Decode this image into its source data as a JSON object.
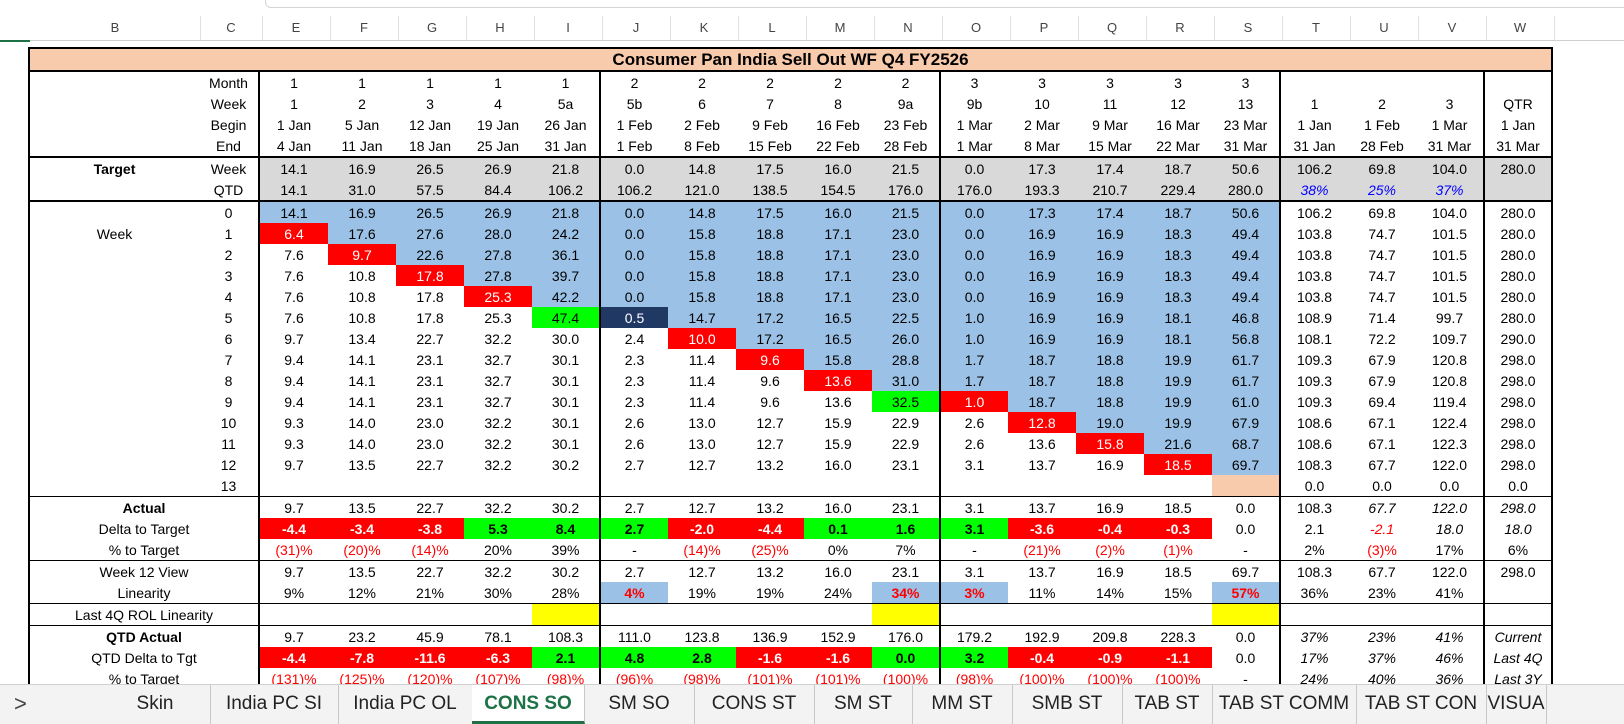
{
  "columns": [
    "B",
    "C",
    "E",
    "F",
    "G",
    "H",
    "I",
    "J",
    "K",
    "L",
    "M",
    "N",
    "O",
    "P",
    "Q",
    "R",
    "S",
    "T",
    "U",
    "V",
    "W"
  ],
  "title": "Consumer Pan India Sell Out WF Q4 FY2526",
  "header": {
    "labels": [
      "Month",
      "Week",
      "Begin",
      "End"
    ],
    "month": [
      "1",
      "1",
      "1",
      "1",
      "1",
      "2",
      "2",
      "2",
      "2",
      "2",
      "3",
      "3",
      "3",
      "3",
      "3"
    ],
    "week": [
      "1",
      "2",
      "3",
      "4",
      "5a",
      "5b",
      "6",
      "7",
      "8",
      "9a",
      "9b",
      "10",
      "11",
      "12",
      "13"
    ],
    "begin": [
      "1 Jan",
      "5 Jan",
      "12 Jan",
      "19 Jan",
      "26 Jan",
      "1 Feb",
      "2 Feb",
      "9 Feb",
      "16 Feb",
      "23 Feb",
      "1 Mar",
      "2 Mar",
      "9 Mar",
      "16 Mar",
      "23 Mar",
      "1 Jan",
      "1 Feb",
      "1 Mar",
      "1 Jan"
    ],
    "end": [
      "4 Jan",
      "11 Jan",
      "18 Jan",
      "25 Jan",
      "31 Jan",
      "1 Feb",
      "8 Feb",
      "15 Feb",
      "22 Feb",
      "28 Feb",
      "1 Mar",
      "8 Mar",
      "15 Mar",
      "22 Mar",
      "31 Mar",
      "31 Jan",
      "28 Feb",
      "31 Mar",
      "31 Mar"
    ],
    "summary_titles": [
      "1",
      "2",
      "3",
      "QTR"
    ]
  },
  "target": {
    "label": "Target",
    "week_label": "Week",
    "qtd_label": "QTD",
    "week": [
      "14.1",
      "16.9",
      "26.5",
      "26.9",
      "21.8",
      "0.0",
      "14.8",
      "17.5",
      "16.0",
      "21.5",
      "0.0",
      "17.3",
      "17.4",
      "18.7",
      "50.6",
      "106.2",
      "69.8",
      "104.0",
      "280.0"
    ],
    "qtd": [
      "14.1",
      "31.0",
      "57.5",
      "84.4",
      "106.2",
      "106.2",
      "121.0",
      "138.5",
      "154.5",
      "176.0",
      "176.0",
      "193.3",
      "210.7",
      "229.4",
      "280.0",
      "38%",
      "25%",
      "37%",
      ""
    ]
  },
  "week_block_label": "Week",
  "weeks": [
    {
      "n": "0",
      "v": [
        "14.1",
        "16.9",
        "26.5",
        "26.9",
        "21.8",
        "0.0",
        "14.8",
        "17.5",
        "16.0",
        "21.5",
        "0.0",
        "17.3",
        "17.4",
        "18.7",
        "50.6",
        "106.2",
        "69.8",
        "104.0",
        "280.0"
      ]
    },
    {
      "n": "1",
      "v": [
        "6.4",
        "17.6",
        "27.6",
        "28.0",
        "24.2",
        "0.0",
        "15.8",
        "18.8",
        "17.1",
        "23.0",
        "0.0",
        "16.9",
        "16.9",
        "18.3",
        "49.4",
        "103.8",
        "74.7",
        "101.5",
        "280.0"
      ]
    },
    {
      "n": "2",
      "v": [
        "7.6",
        "9.7",
        "22.6",
        "27.8",
        "36.1",
        "0.0",
        "15.8",
        "18.8",
        "17.1",
        "23.0",
        "0.0",
        "16.9",
        "16.9",
        "18.3",
        "49.4",
        "103.8",
        "74.7",
        "101.5",
        "280.0"
      ]
    },
    {
      "n": "3",
      "v": [
        "7.6",
        "10.8",
        "17.8",
        "27.8",
        "39.7",
        "0.0",
        "15.8",
        "18.8",
        "17.1",
        "23.0",
        "0.0",
        "16.9",
        "16.9",
        "18.3",
        "49.4",
        "103.8",
        "74.7",
        "101.5",
        "280.0"
      ]
    },
    {
      "n": "4",
      "v": [
        "7.6",
        "10.8",
        "17.8",
        "25.3",
        "42.2",
        "0.0",
        "15.8",
        "18.8",
        "17.1",
        "23.0",
        "0.0",
        "16.9",
        "16.9",
        "18.3",
        "49.4",
        "103.8",
        "74.7",
        "101.5",
        "280.0"
      ]
    },
    {
      "n": "5",
      "v": [
        "7.6",
        "10.8",
        "17.8",
        "25.3",
        "47.4",
        "0.5",
        "14.7",
        "17.2",
        "16.5",
        "22.5",
        "1.0",
        "16.9",
        "16.9",
        "18.1",
        "46.8",
        "108.9",
        "71.4",
        "99.7",
        "280.0"
      ]
    },
    {
      "n": "6",
      "v": [
        "9.7",
        "13.4",
        "22.7",
        "32.2",
        "30.0",
        "2.4",
        "10.0",
        "17.2",
        "16.5",
        "26.0",
        "1.0",
        "16.9",
        "16.9",
        "18.1",
        "56.8",
        "108.1",
        "72.2",
        "109.7",
        "290.0"
      ]
    },
    {
      "n": "7",
      "v": [
        "9.4",
        "14.1",
        "23.1",
        "32.7",
        "30.1",
        "2.3",
        "11.4",
        "9.6",
        "15.8",
        "28.8",
        "1.7",
        "18.7",
        "18.8",
        "19.9",
        "61.7",
        "109.3",
        "67.9",
        "120.8",
        "298.0"
      ]
    },
    {
      "n": "8",
      "v": [
        "9.4",
        "14.1",
        "23.1",
        "32.7",
        "30.1",
        "2.3",
        "11.4",
        "9.6",
        "13.6",
        "31.0",
        "1.7",
        "18.7",
        "18.8",
        "19.9",
        "61.7",
        "109.3",
        "67.9",
        "120.8",
        "298.0"
      ]
    },
    {
      "n": "9",
      "v": [
        "9.4",
        "14.1",
        "23.1",
        "32.7",
        "30.1",
        "2.3",
        "11.4",
        "9.6",
        "13.6",
        "32.5",
        "1.0",
        "18.7",
        "18.8",
        "19.9",
        "61.0",
        "109.3",
        "69.4",
        "119.4",
        "298.0"
      ]
    },
    {
      "n": "10",
      "v": [
        "9.3",
        "14.0",
        "23.0",
        "32.2",
        "30.1",
        "2.6",
        "13.0",
        "12.7",
        "15.9",
        "22.9",
        "2.6",
        "12.8",
        "19.0",
        "19.9",
        "67.9",
        "108.6",
        "67.1",
        "122.4",
        "298.0"
      ]
    },
    {
      "n": "11",
      "v": [
        "9.3",
        "14.0",
        "23.0",
        "32.2",
        "30.1",
        "2.6",
        "13.0",
        "12.7",
        "15.9",
        "22.9",
        "2.6",
        "13.6",
        "15.8",
        "21.6",
        "68.7",
        "108.6",
        "67.1",
        "122.3",
        "298.0"
      ]
    },
    {
      "n": "12",
      "v": [
        "9.7",
        "13.5",
        "22.7",
        "32.2",
        "30.2",
        "2.7",
        "12.7",
        "13.2",
        "16.0",
        "23.1",
        "3.1",
        "13.7",
        "16.9",
        "18.5",
        "69.7",
        "108.3",
        "67.7",
        "122.0",
        "298.0"
      ]
    },
    {
      "n": "13",
      "v": [
        "",
        "",
        "",
        "",
        "",
        "",
        "",
        "",
        "",
        "",
        "",
        "",
        "",
        "",
        "",
        "0.0",
        "0.0",
        "0.0",
        "0.0"
      ]
    }
  ],
  "actual": {
    "label": "Actual",
    "v": [
      "9.7",
      "13.5",
      "22.7",
      "32.2",
      "30.2",
      "2.7",
      "12.7",
      "13.2",
      "16.0",
      "23.1",
      "3.1",
      "13.7",
      "16.9",
      "18.5",
      "0.0",
      "108.3",
      "67.7",
      "122.0",
      "298.0"
    ]
  },
  "delta": {
    "label": "Delta to Target",
    "v": [
      "-4.4",
      "-3.4",
      "-3.8",
      "5.3",
      "8.4",
      "2.7",
      "-2.0",
      "-4.4",
      "0.1",
      "1.6",
      "3.1",
      "-3.6",
      "-0.4",
      "-0.3",
      "0.0",
      "2.1",
      "-2.1",
      "18.0",
      "18.0"
    ]
  },
  "pct_target": {
    "label": "% to Target",
    "v": [
      "(31)%",
      "(20)%",
      "(14)%",
      "20%",
      "39%",
      "-",
      "(14)%",
      "(25)%",
      "0%",
      "7%",
      "-",
      "(21)%",
      "(2)%",
      "(1)%",
      "-",
      "2%",
      "(3)%",
      "17%",
      "6%"
    ]
  },
  "week12": {
    "label": "Week 12 View",
    "v": [
      "9.7",
      "13.5",
      "22.7",
      "32.2",
      "30.2",
      "2.7",
      "12.7",
      "13.2",
      "16.0",
      "23.1",
      "3.1",
      "13.7",
      "16.9",
      "18.5",
      "69.7",
      "108.3",
      "67.7",
      "122.0",
      "298.0"
    ]
  },
  "linearity": {
    "label": "Linearity",
    "v": [
      "9%",
      "12%",
      "21%",
      "30%",
      "28%",
      "4%",
      "19%",
      "19%",
      "24%",
      "34%",
      "3%",
      "11%",
      "14%",
      "15%",
      "57%",
      "36%",
      "23%",
      "41%",
      ""
    ]
  },
  "last4q": {
    "label": "Last 4Q ROL Linearity"
  },
  "qtd_actual": {
    "label": "QTD Actual",
    "v": [
      "9.7",
      "23.2",
      "45.9",
      "78.1",
      "108.3",
      "111.0",
      "123.8",
      "136.9",
      "152.9",
      "176.0",
      "179.2",
      "192.9",
      "209.8",
      "228.3",
      "0.0",
      "37%",
      "23%",
      "41%",
      "Current"
    ]
  },
  "qtd_delta": {
    "label": "QTD Delta to Tgt",
    "v": [
      "-4.4",
      "-7.8",
      "-11.6",
      "-6.3",
      "2.1",
      "4.8",
      "2.8",
      "-1.6",
      "-1.6",
      "0.0",
      "3.2",
      "-0.4",
      "-0.9",
      "-1.1",
      "0.0",
      "17%",
      "37%",
      "46%",
      "Last 4Q"
    ]
  },
  "qtd_pct": {
    "label": "% to Target",
    "v": [
      "(131)%",
      "(125)%",
      "(120)%",
      "(107)%",
      "(98)%",
      "(96)%",
      "(98)%",
      "(101)%",
      "(101)%",
      "(100)%",
      "(98)%",
      "(100)%",
      "(100)%",
      "(100)%",
      "-",
      "24%",
      "40%",
      "36%",
      "Last 3Y"
    ]
  },
  "tabs": [
    {
      "label": "Skin",
      "active": false
    },
    {
      "label": "India PC SI",
      "active": false
    },
    {
      "label": "India PC OL",
      "active": false
    },
    {
      "label": "CONS SO",
      "active": true
    },
    {
      "label": "SM SO",
      "active": false
    },
    {
      "label": "CONS ST",
      "active": false
    },
    {
      "label": "SM ST",
      "active": false
    },
    {
      "label": "MM ST",
      "active": false
    },
    {
      "label": "SMB ST",
      "active": false
    },
    {
      "label": "TAB ST",
      "active": false
    },
    {
      "label": "TAB ST COMM",
      "active": false
    },
    {
      "label": "TAB ST CON",
      "active": false
    },
    {
      "label": "VISUA",
      "active": false
    }
  ],
  "nav_glyph": ">"
}
